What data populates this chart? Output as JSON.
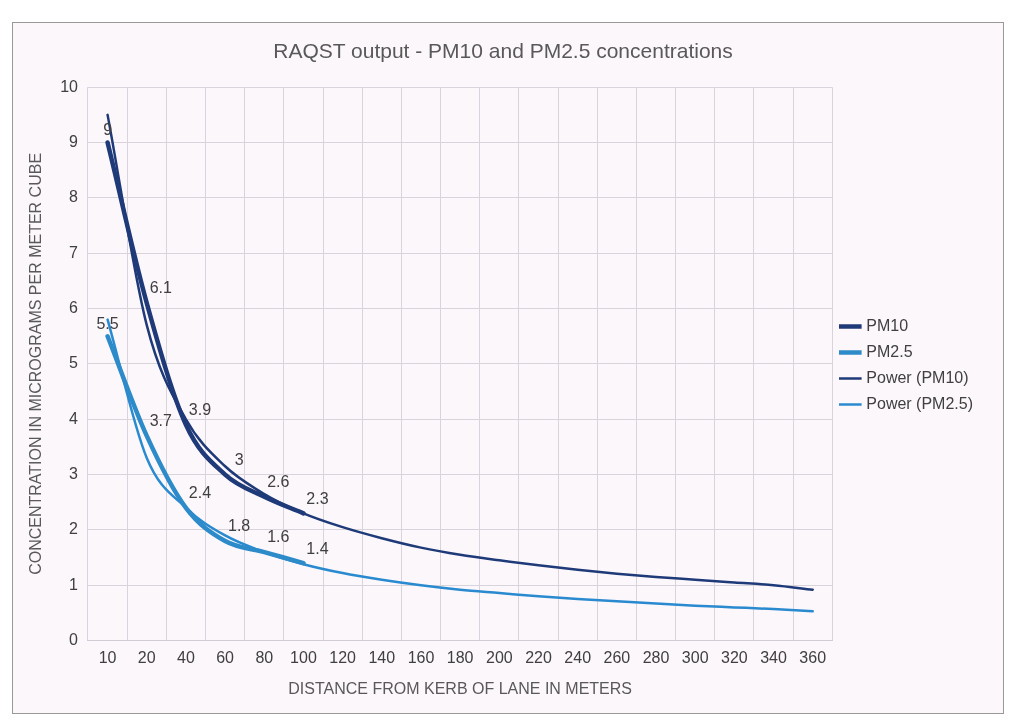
{
  "chart_data": {
    "type": "line",
    "title": "RAQST output - PM10 and PM2.5 concentrations",
    "xlabel": "DISTANCE FROM KERB OF LANE IN METERS",
    "ylabel": "CONCENTRATION IN MICROGRAMS PER METER CUBE",
    "categories": [
      "10",
      "20",
      "40",
      "60",
      "80",
      "100",
      "120",
      "140",
      "160",
      "180",
      "200",
      "220",
      "240",
      "260",
      "280",
      "300",
      "320",
      "340",
      "360"
    ],
    "series": [
      {
        "name": "PM10",
        "color": "#1f3a78",
        "values": [
          9,
          6.1,
          3.9,
          3,
          2.6,
          2.3,
          null,
          null,
          null,
          null,
          null,
          null,
          null,
          null,
          null,
          null,
          null,
          null,
          null
        ],
        "value_labels": [
          "9",
          "6.1",
          "3.9",
          "3",
          "2.6",
          "2.3",
          null,
          null,
          null,
          null,
          null,
          null,
          null,
          null,
          null,
          null,
          null,
          null,
          null
        ]
      },
      {
        "name": "PM2.5",
        "color": "#2e8bc9",
        "values": [
          5.5,
          3.7,
          2.4,
          1.8,
          1.6,
          1.4,
          null,
          null,
          null,
          null,
          null,
          null,
          null,
          null,
          null,
          null,
          null,
          null,
          null
        ],
        "value_labels": [
          "5.5",
          "3.7",
          "2.4",
          "1.8",
          "1.6",
          "1.4",
          null,
          null,
          null,
          null,
          null,
          null,
          null,
          null,
          null,
          null,
          null,
          null,
          null
        ]
      },
      {
        "name": "Power (PM10)",
        "color": "#1f3a78",
        "values": [
          9.5,
          5.7,
          4.0,
          3.15,
          2.65,
          2.3,
          2.05,
          1.85,
          1.68,
          1.55,
          1.45,
          1.36,
          1.28,
          1.21,
          1.15,
          1.1,
          1.05,
          1.0,
          0.92
        ]
      },
      {
        "name": "Power (PM2.5)",
        "color": "#2a8ad0",
        "values": [
          5.8,
          3.3,
          2.4,
          1.9,
          1.6,
          1.38,
          1.22,
          1.1,
          1.0,
          0.92,
          0.86,
          0.8,
          0.75,
          0.71,
          0.67,
          0.63,
          0.6,
          0.57,
          0.53
        ]
      }
    ],
    "ylim": [
      0,
      10
    ],
    "yticks": [
      0,
      1,
      2,
      3,
      4,
      5,
      6,
      7,
      8,
      9,
      10
    ],
    "grid": true,
    "legend": "right",
    "marker": "none"
  }
}
